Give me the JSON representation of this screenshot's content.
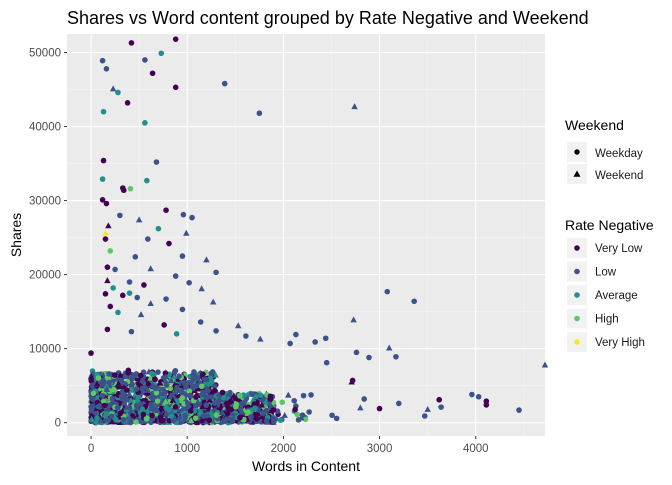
{
  "chart_data": {
    "type": "scatter",
    "title": "Shares vs Word content grouped by Rate Negative and Weekend",
    "xlabel": "Words in Content",
    "ylabel": "Shares",
    "xlim": [
      -250,
      4720
    ],
    "ylim": [
      -1800,
      52500
    ],
    "x_ticks": [
      0,
      1000,
      2000,
      3000,
      4000
    ],
    "y_ticks": [
      0,
      10000,
      20000,
      30000,
      40000,
      50000
    ],
    "x_tick_labels": [
      "0",
      "1000",
      "2000",
      "3000",
      "4000"
    ],
    "y_tick_labels": [
      "0",
      "10000",
      "20000",
      "30000",
      "40000",
      "50000"
    ],
    "grid": true,
    "panel_background": "#ebebeb",
    "shape_legend": {
      "title": "Weekend",
      "entries": [
        {
          "label": "Weekday",
          "shape": "circle"
        },
        {
          "label": "Weekend",
          "shape": "triangle"
        }
      ]
    },
    "color_legend": {
      "title": "Rate Negative",
      "entries": [
        {
          "label": "Very Low",
          "color": "#440154"
        },
        {
          "label": "Low",
          "color": "#3b528b"
        },
        {
          "label": "Average",
          "color": "#21908c"
        },
        {
          "label": "High",
          "color": "#5dc863"
        },
        {
          "label": "Very High",
          "color": "#fde725"
        }
      ]
    },
    "legend_position": "right",
    "points": [
      {
        "x": 420,
        "y": 51300,
        "group": "Very Low",
        "shape": "circle"
      },
      {
        "x": 880,
        "y": 51800,
        "group": "Very Low",
        "shape": "circle"
      },
      {
        "x": 730,
        "y": 49900,
        "group": "Average",
        "shape": "circle"
      },
      {
        "x": 120,
        "y": 48900,
        "group": "Low",
        "shape": "circle"
      },
      {
        "x": 560,
        "y": 49000,
        "group": "Low",
        "shape": "circle"
      },
      {
        "x": 160,
        "y": 47800,
        "group": "Low",
        "shape": "circle"
      },
      {
        "x": 640,
        "y": 47200,
        "group": "Very Low",
        "shape": "circle"
      },
      {
        "x": 230,
        "y": 45100,
        "group": "Low",
        "shape": "triangle"
      },
      {
        "x": 280,
        "y": 44600,
        "group": "Average",
        "shape": "circle"
      },
      {
        "x": 880,
        "y": 45300,
        "group": "Very Low",
        "shape": "circle"
      },
      {
        "x": 1390,
        "y": 45800,
        "group": "Low",
        "shape": "circle"
      },
      {
        "x": 380,
        "y": 43200,
        "group": "Very Low",
        "shape": "circle"
      },
      {
        "x": 2740,
        "y": 42700,
        "group": "Low",
        "shape": "triangle"
      },
      {
        "x": 130,
        "y": 42000,
        "group": "Average",
        "shape": "circle"
      },
      {
        "x": 1750,
        "y": 41800,
        "group": "Low",
        "shape": "circle"
      },
      {
        "x": 560,
        "y": 40500,
        "group": "Average",
        "shape": "circle"
      },
      {
        "x": 130,
        "y": 35400,
        "group": "Very Low",
        "shape": "circle"
      },
      {
        "x": 680,
        "y": 35200,
        "group": "Low",
        "shape": "circle"
      },
      {
        "x": 120,
        "y": 32900,
        "group": "Average",
        "shape": "circle"
      },
      {
        "x": 580,
        "y": 32700,
        "group": "Average",
        "shape": "circle"
      },
      {
        "x": 330,
        "y": 31700,
        "group": "Very Low",
        "shape": "circle"
      },
      {
        "x": 410,
        "y": 31600,
        "group": "High",
        "shape": "circle"
      },
      {
        "x": 340,
        "y": 31400,
        "group": "Very Low",
        "shape": "circle"
      },
      {
        "x": 120,
        "y": 30100,
        "group": "Very Low",
        "shape": "circle"
      },
      {
        "x": 160,
        "y": 29600,
        "group": "Very Low",
        "shape": "circle"
      },
      {
        "x": 780,
        "y": 28700,
        "group": "Very Low",
        "shape": "circle"
      },
      {
        "x": 300,
        "y": 28000,
        "group": "Low",
        "shape": "circle"
      },
      {
        "x": 500,
        "y": 27400,
        "group": "Low",
        "shape": "triangle"
      },
      {
        "x": 960,
        "y": 28100,
        "group": "Low",
        "shape": "circle"
      },
      {
        "x": 1050,
        "y": 27700,
        "group": "Low",
        "shape": "circle"
      },
      {
        "x": 180,
        "y": 26600,
        "group": "Very Low",
        "shape": "triangle"
      },
      {
        "x": 150,
        "y": 25600,
        "group": "Very High",
        "shape": "triangle"
      },
      {
        "x": 700,
        "y": 26200,
        "group": "Average",
        "shape": "circle"
      },
      {
        "x": 990,
        "y": 25600,
        "group": "Low",
        "shape": "triangle"
      },
      {
        "x": 150,
        "y": 24800,
        "group": "Very Low",
        "shape": "circle"
      },
      {
        "x": 590,
        "y": 24800,
        "group": "Low",
        "shape": "circle"
      },
      {
        "x": 810,
        "y": 24200,
        "group": "Very Low",
        "shape": "circle"
      },
      {
        "x": 200,
        "y": 23200,
        "group": "High",
        "shape": "circle"
      },
      {
        "x": 950,
        "y": 22500,
        "group": "Low",
        "shape": "circle"
      },
      {
        "x": 1200,
        "y": 22000,
        "group": "Low",
        "shape": "triangle"
      },
      {
        "x": 460,
        "y": 22400,
        "group": "Low",
        "shape": "circle"
      },
      {
        "x": 170,
        "y": 21000,
        "group": "Very Low",
        "shape": "circle"
      },
      {
        "x": 250,
        "y": 20700,
        "group": "Low",
        "shape": "circle"
      },
      {
        "x": 620,
        "y": 20800,
        "group": "Low",
        "shape": "triangle"
      },
      {
        "x": 1300,
        "y": 20300,
        "group": "Low",
        "shape": "circle"
      },
      {
        "x": 880,
        "y": 19800,
        "group": "Low",
        "shape": "circle"
      },
      {
        "x": 170,
        "y": 19200,
        "group": "Very Low",
        "shape": "triangle"
      },
      {
        "x": 400,
        "y": 19000,
        "group": "Low",
        "shape": "circle"
      },
      {
        "x": 1020,
        "y": 18900,
        "group": "Low",
        "shape": "circle"
      },
      {
        "x": 550,
        "y": 18600,
        "group": "Very Low",
        "shape": "circle"
      },
      {
        "x": 230,
        "y": 18200,
        "group": "Average",
        "shape": "circle"
      },
      {
        "x": 1150,
        "y": 18100,
        "group": "Low",
        "shape": "triangle"
      },
      {
        "x": 150,
        "y": 17400,
        "group": "Very Low",
        "shape": "circle"
      },
      {
        "x": 330,
        "y": 17200,
        "group": "Very Low",
        "shape": "circle"
      },
      {
        "x": 480,
        "y": 16900,
        "group": "Low",
        "shape": "circle"
      },
      {
        "x": 780,
        "y": 16700,
        "group": "Low",
        "shape": "circle"
      },
      {
        "x": 620,
        "y": 16100,
        "group": "Low",
        "shape": "triangle"
      },
      {
        "x": 400,
        "y": 17500,
        "group": "Average",
        "shape": "circle"
      },
      {
        "x": 1270,
        "y": 16300,
        "group": "Low",
        "shape": "triangle"
      },
      {
        "x": 200,
        "y": 15700,
        "group": "Very Low",
        "shape": "circle"
      },
      {
        "x": 950,
        "y": 15300,
        "group": "Low",
        "shape": "circle"
      },
      {
        "x": 280,
        "y": 14900,
        "group": "Average",
        "shape": "circle"
      },
      {
        "x": 520,
        "y": 14600,
        "group": "Low",
        "shape": "triangle"
      },
      {
        "x": 3080,
        "y": 17700,
        "group": "Low",
        "shape": "circle"
      },
      {
        "x": 3360,
        "y": 16400,
        "group": "Low",
        "shape": "circle"
      },
      {
        "x": 1140,
        "y": 13600,
        "group": "Low",
        "shape": "circle"
      },
      {
        "x": 760,
        "y": 13200,
        "group": "Very Low",
        "shape": "circle"
      },
      {
        "x": 2730,
        "y": 13900,
        "group": "Low",
        "shape": "triangle"
      },
      {
        "x": 1530,
        "y": 13100,
        "group": "Low",
        "shape": "triangle"
      },
      {
        "x": 170,
        "y": 12600,
        "group": "Very Low",
        "shape": "circle"
      },
      {
        "x": 420,
        "y": 12300,
        "group": "Low",
        "shape": "circle"
      },
      {
        "x": 1300,
        "y": 12400,
        "group": "Low",
        "shape": "circle"
      },
      {
        "x": 890,
        "y": 12000,
        "group": "Average",
        "shape": "circle"
      },
      {
        "x": 1610,
        "y": 11700,
        "group": "Low",
        "shape": "circle"
      },
      {
        "x": 2130,
        "y": 11900,
        "group": "Low",
        "shape": "circle"
      },
      {
        "x": 1760,
        "y": 11300,
        "group": "Low",
        "shape": "triangle"
      },
      {
        "x": 2440,
        "y": 11400,
        "group": "Low",
        "shape": "circle"
      },
      {
        "x": 2330,
        "y": 10900,
        "group": "Low",
        "shape": "circle"
      },
      {
        "x": 2070,
        "y": 10700,
        "group": "Low",
        "shape": "circle"
      },
      {
        "x": 0,
        "y": 9400,
        "group": "Very Low",
        "shape": "circle"
      },
      {
        "x": 4720,
        "y": 7800,
        "group": "Low",
        "shape": "triangle"
      },
      {
        "x": 3170,
        "y": 8900,
        "group": "Low",
        "shape": "circle"
      },
      {
        "x": 2760,
        "y": 9500,
        "group": "Low",
        "shape": "circle"
      },
      {
        "x": 3100,
        "y": 10100,
        "group": "Low",
        "shape": "triangle"
      },
      {
        "x": 2890,
        "y": 8800,
        "group": "Low",
        "shape": "circle"
      },
      {
        "x": 2450,
        "y": 8100,
        "group": "Low",
        "shape": "circle"
      },
      {
        "x": 2720,
        "y": 5700,
        "group": "Very Low",
        "shape": "circle"
      },
      {
        "x": 2710,
        "y": 5500,
        "group": "Very Low",
        "shape": "triangle"
      },
      {
        "x": 3620,
        "y": 3100,
        "group": "Very Low",
        "shape": "circle"
      },
      {
        "x": 3960,
        "y": 3800,
        "group": "Low",
        "shape": "circle"
      },
      {
        "x": 4030,
        "y": 3500,
        "group": "Low",
        "shape": "circle"
      },
      {
        "x": 4110,
        "y": 2900,
        "group": "Very Low",
        "shape": "circle"
      },
      {
        "x": 4110,
        "y": 2400,
        "group": "Very Low",
        "shape": "circle"
      },
      {
        "x": 3640,
        "y": 2100,
        "group": "Low",
        "shape": "circle"
      },
      {
        "x": 3500,
        "y": 1800,
        "group": "Low",
        "shape": "triangle"
      },
      {
        "x": 3470,
        "y": 900,
        "group": "Low",
        "shape": "circle"
      },
      {
        "x": 4450,
        "y": 1700,
        "group": "Low",
        "shape": "circle"
      },
      {
        "x": 3200,
        "y": 2600,
        "group": "Low",
        "shape": "circle"
      },
      {
        "x": 3000,
        "y": 1900,
        "group": "Very Low",
        "shape": "circle"
      },
      {
        "x": 2840,
        "y": 3200,
        "group": "Low",
        "shape": "circle"
      },
      {
        "x": 2800,
        "y": 2000,
        "group": "Low",
        "shape": "triangle"
      },
      {
        "x": 1040,
        "y": 300,
        "group": "High",
        "shape": "triangle"
      }
    ]
  }
}
